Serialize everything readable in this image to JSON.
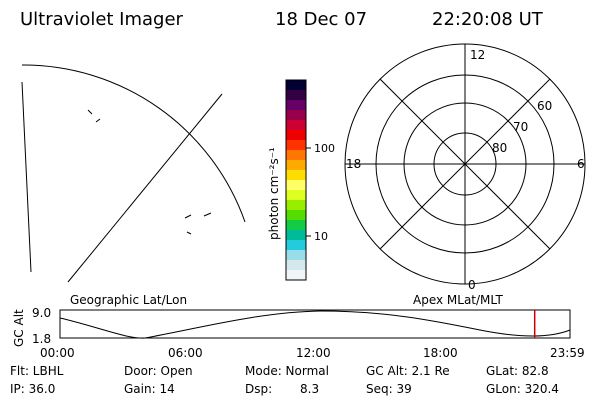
{
  "header": {
    "title": "Ultraviolet Imager",
    "date": "18 Dec 07",
    "time": "22:20:08 UT"
  },
  "colorbar": {
    "unit_label": "photon cm⁻²s⁻¹",
    "tick_100": "100",
    "tick_10": "10",
    "colors": [
      "#000033",
      "#330044",
      "#660066",
      "#99004c",
      "#cc0033",
      "#ee0000",
      "#ff3300",
      "#ff7700",
      "#ffaa00",
      "#ffdd00",
      "#ffff66",
      "#ddff22",
      "#99ee00",
      "#55dd00",
      "#11cc44",
      "#00bb99",
      "#22ccdd",
      "#99dde8",
      "#d4e8ee",
      "#f0f5f7"
    ]
  },
  "polar": {
    "label_12": "12",
    "label_18": "18",
    "label_6": "6",
    "label_0": "0",
    "label_60": "60",
    "label_70": "70",
    "label_80": "80"
  },
  "timeline": {
    "left_title": "Geographic Lat/Lon",
    "right_title": "Apex MLat/MLT",
    "yaxis_label": "GC Alt",
    "y_top": "9.0",
    "y_bottom": "1.8",
    "ticks": [
      "00:00",
      "06:00",
      "12:00",
      "18:00",
      "23:59"
    ],
    "marker_color": "#cc0000",
    "marker_time_hours": 22.34
  },
  "status": {
    "flt": "Flt: LBHL",
    "ip": "IP: 36.0",
    "door": "Door: Open",
    "gain": "Gain: 14",
    "mode": "Mode: Normal",
    "dsp_label": "Dsp:",
    "dsp_value": "8.3",
    "gcalt": "GC Alt: 2.1 Re",
    "seq": "Seq: 39",
    "glat": "GLat:  82.8",
    "glon": "GLon: 320.4"
  }
}
